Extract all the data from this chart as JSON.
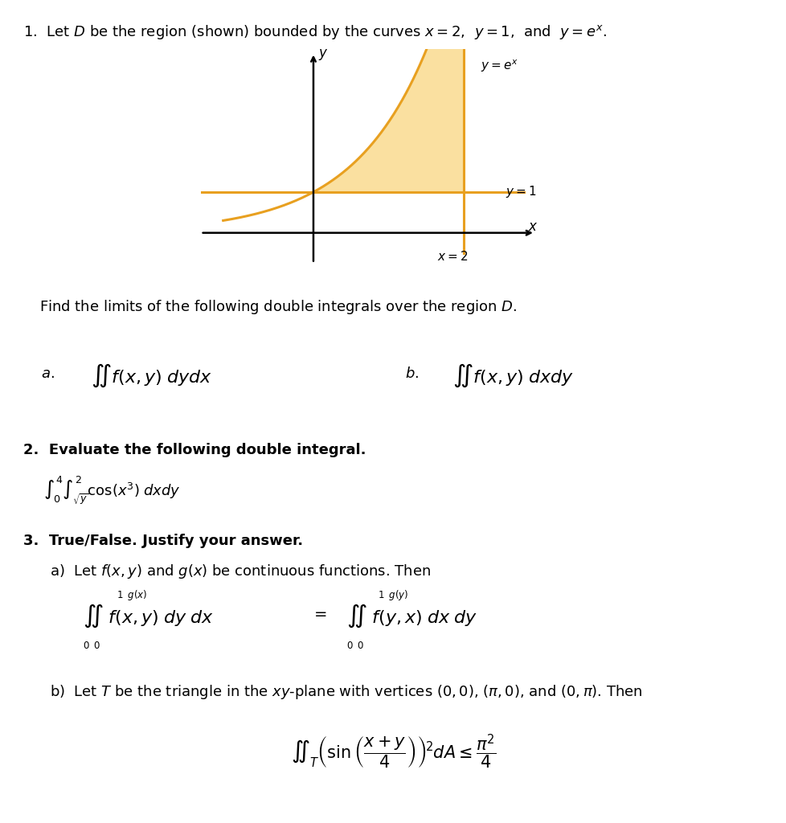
{
  "orange_color": "#E8A020",
  "fill_color": "#FAE0A0",
  "background": "#ffffff",
  "title_line": "1.  Let $D$ be the region (shown) bounded by the curves $x = 2$,  $y = 1$,  and  $y = e^x$.",
  "find_text": "Find the limits of the following double integrals over the region $D$.",
  "q2_bold": "2.  Evaluate the following double integral.",
  "q3_bold": "3.  True/False. Justify your answer.",
  "q3a_text": "a)  Let $f(x,y)$ and $g(x)$ be continuous functions. Then",
  "q3b_text": "b)  Let $T$ be the triangle in the $xy$-plane with vertices $(0,0)$, $({\\pi},0)$, and $(0,{\\pi})$. Then"
}
